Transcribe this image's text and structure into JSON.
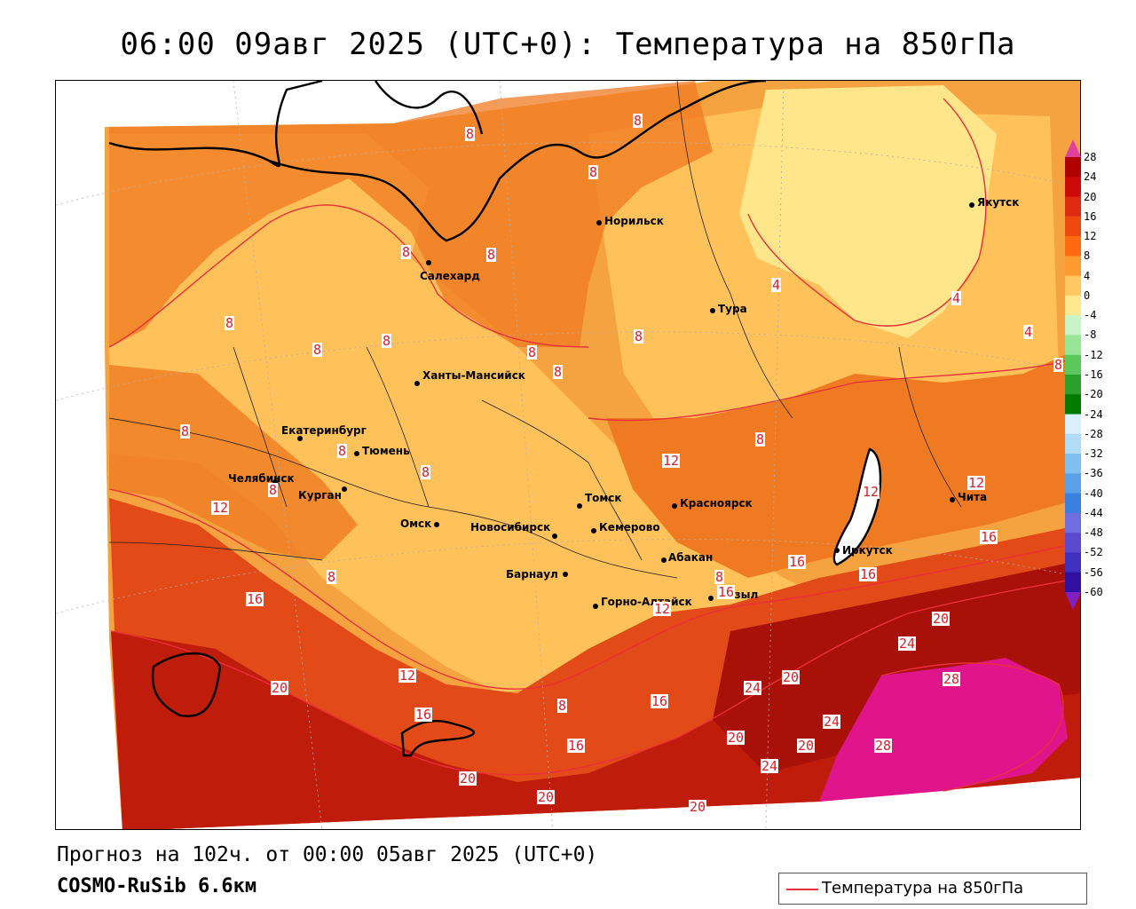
{
  "title": "06:00 09авг 2025 (UTC+0): Температура на 850гПа",
  "footer": {
    "forecast": "Прогноз на 102ч. от 00:00 05авг 2025 (UTC+0)",
    "model": "COSMO-RuSib 6.6км"
  },
  "legend": {
    "label": "Температура на 850гПа",
    "line_color": "#e8303a"
  },
  "colorbar": {
    "labels": [
      "28",
      "24",
      "20",
      "16",
      "12",
      "8",
      "4",
      "0",
      "-4",
      "-8",
      "-12",
      "-16",
      "-20",
      "-24",
      "-28",
      "-32",
      "-36",
      "-40",
      "-44",
      "-48",
      "-52",
      "-56",
      "-60"
    ],
    "colors": [
      "#b00000",
      "#cc0a0a",
      "#dd2a10",
      "#ee4a10",
      "#ff6a10",
      "#ff9a30",
      "#ffc860",
      "#ffe890",
      "#c8f5c8",
      "#96e696",
      "#5cc85c",
      "#2aa02a",
      "#007a00",
      "#d8f0ff",
      "#b0dcf8",
      "#80c0f0",
      "#5aa0e8",
      "#3a80e0",
      "#6e6ee0",
      "#5a4ad0",
      "#4030c0",
      "#3010a0",
      "#200080"
    ],
    "top_color": "#e040a0",
    "bottom_color": "#8020c0"
  },
  "cities": [
    {
      "name": "Норильск"
    },
    {
      "name": "Якутск"
    },
    {
      "name": "Салехард"
    },
    {
      "name": "Тура"
    },
    {
      "name": "Ханты-Мансийск"
    },
    {
      "name": "Екатеринбург"
    },
    {
      "name": "Тюмень"
    },
    {
      "name": "Челябинск"
    },
    {
      "name": "Курган"
    },
    {
      "name": "Омск"
    },
    {
      "name": "Томск"
    },
    {
      "name": "Новосибирск"
    },
    {
      "name": "Кемерово"
    },
    {
      "name": "Красноярск"
    },
    {
      "name": "Абакан"
    },
    {
      "name": "Барнаул"
    },
    {
      "name": "Горно-Алтайск"
    },
    {
      "name": "Кызыл"
    },
    {
      "name": "Иркутск"
    },
    {
      "name": "Чита"
    }
  ],
  "isotherm_labels": [
    "8",
    "8",
    "8",
    "8",
    "8",
    "8",
    "8",
    "8",
    "8",
    "8",
    "8",
    "8",
    "8",
    "8",
    "8",
    "8",
    "4",
    "4",
    "4",
    "12",
    "12",
    "12",
    "12",
    "12",
    "12",
    "16",
    "16",
    "16",
    "16",
    "16",
    "16",
    "16",
    "16",
    "20",
    "20",
    "20",
    "20",
    "20",
    "20",
    "20",
    "20",
    "24",
    "24",
    "24",
    "24",
    "28",
    "28",
    "8",
    "8",
    "8",
    "8"
  ]
}
